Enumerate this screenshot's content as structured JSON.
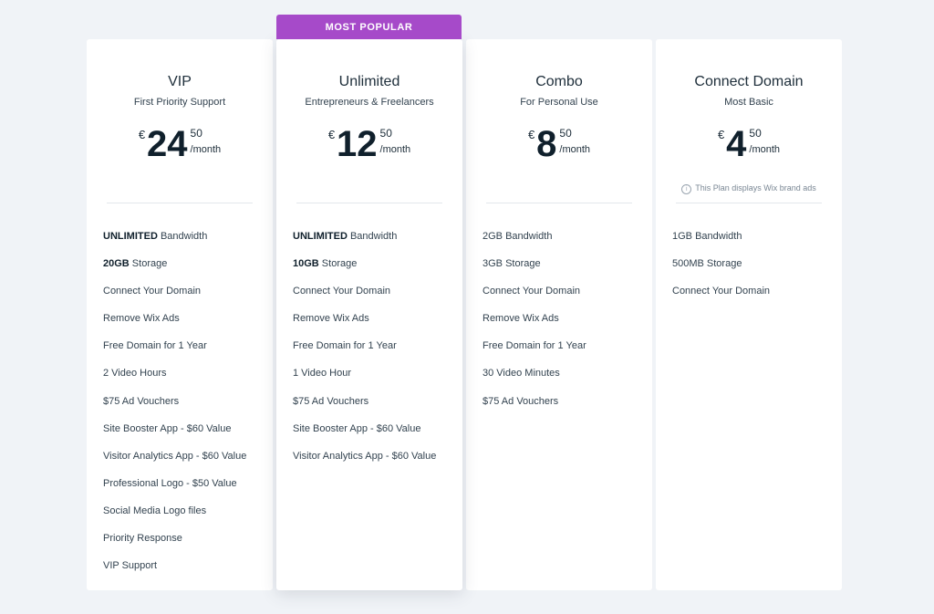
{
  "ribbon": {
    "label": "MOST POPULAR"
  },
  "plans": [
    {
      "name": "VIP",
      "subtitle": "First Priority Support",
      "currency": "€",
      "amount": "24",
      "cents": "50",
      "period": "/month",
      "features": [
        {
          "bold": "UNLIMITED",
          "text": " Bandwidth"
        },
        {
          "bold": "20GB",
          "text": " Storage"
        },
        {
          "bold": "",
          "text": "Connect Your Domain"
        },
        {
          "bold": "",
          "text": "Remove Wix Ads"
        },
        {
          "bold": "",
          "text": "Free Domain for 1 Year"
        },
        {
          "bold": "",
          "text": "2 Video Hours"
        },
        {
          "bold": "",
          "text": "$75 Ad Vouchers"
        },
        {
          "bold": "",
          "text": "Site Booster App - $60 Value"
        },
        {
          "bold": "",
          "text": "Visitor Analytics App - $60 Value"
        },
        {
          "bold": "",
          "text": "Professional Logo - $50 Value"
        },
        {
          "bold": "",
          "text": "Social Media Logo files"
        },
        {
          "bold": "",
          "text": "Priority Response"
        },
        {
          "bold": "",
          "text": "VIP Support"
        }
      ]
    },
    {
      "name": "Unlimited",
      "subtitle": "Entrepreneurs & Freelancers",
      "currency": "€",
      "amount": "12",
      "cents": "50",
      "period": "/month",
      "features": [
        {
          "bold": "UNLIMITED",
          "text": " Bandwidth"
        },
        {
          "bold": "10GB",
          "text": " Storage"
        },
        {
          "bold": "",
          "text": "Connect Your Domain"
        },
        {
          "bold": "",
          "text": "Remove Wix Ads"
        },
        {
          "bold": "",
          "text": "Free Domain for 1 Year"
        },
        {
          "bold": "",
          "text": "1 Video Hour"
        },
        {
          "bold": "",
          "text": "$75 Ad Vouchers"
        },
        {
          "bold": "",
          "text": "Site Booster App - $60 Value"
        },
        {
          "bold": "",
          "text": "Visitor Analytics App - $60 Value"
        }
      ]
    },
    {
      "name": "Combo",
      "subtitle": "For Personal Use",
      "currency": "€",
      "amount": "8",
      "cents": "50",
      "period": "/month",
      "features": [
        {
          "bold": "",
          "text": "2GB Bandwidth"
        },
        {
          "bold": "",
          "text": "3GB Storage"
        },
        {
          "bold": "",
          "text": "Connect Your Domain"
        },
        {
          "bold": "",
          "text": "Remove Wix Ads"
        },
        {
          "bold": "",
          "text": "Free Domain for 1 Year"
        },
        {
          "bold": "",
          "text": "30 Video Minutes"
        },
        {
          "bold": "",
          "text": "$75 Ad Vouchers"
        }
      ]
    },
    {
      "name": "Connect Domain",
      "subtitle": "Most Basic",
      "currency": "€",
      "amount": "4",
      "cents": "50",
      "period": "/month",
      "notice": "This Plan displays Wix brand ads",
      "features": [
        {
          "bold": "",
          "text": "1GB Bandwidth"
        },
        {
          "bold": "",
          "text": "500MB Storage"
        },
        {
          "bold": "",
          "text": "Connect Your Domain"
        }
      ]
    }
  ],
  "colors": {
    "ribbon": "#a64ac9",
    "background": "#f0f3f7",
    "card": "#ffffff"
  },
  "icons": {
    "notice": "info-icon"
  }
}
